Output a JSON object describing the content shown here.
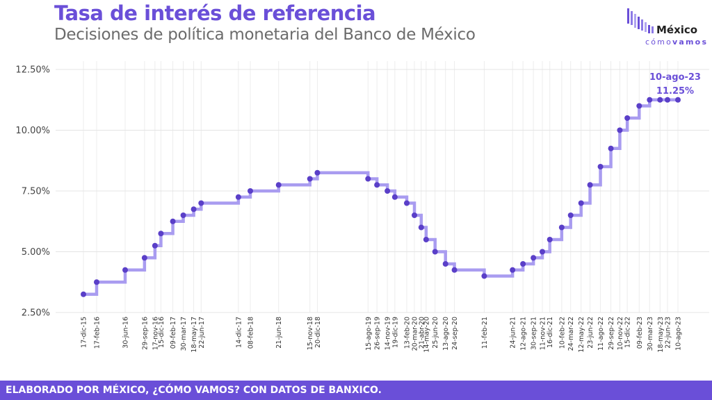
{
  "header": {
    "title": "Tasa de interés de referencia",
    "subtitle": "Decisiones de política monetaria del Banco de México"
  },
  "logo": {
    "word": "México",
    "sub_light": "cómo",
    "sub_bold": "vamos",
    "accent": "#6a4fd8"
  },
  "footer": {
    "text": "ELABORADO POR MÉXICO, ¿CÓMO VAMOS? CON DATOS DE BANXICO.",
    "bg_color": "#6a4fd8"
  },
  "chart_data": {
    "type": "line",
    "step": true,
    "line_color": "#a99cf0",
    "point_color": "#5a3fc8",
    "ylim": [
      2.0,
      12.5
    ],
    "yticks": [
      "2.50%",
      "5.00%",
      "7.50%",
      "10.00%",
      "12.50%"
    ],
    "ytick_values": [
      2.5,
      5.0,
      7.5,
      10.0,
      12.5
    ],
    "grid": true,
    "annotation": {
      "date": "10-ago-23",
      "value": "11.25%"
    },
    "points": [
      {
        "label": "17-dic-15",
        "date": "2015-12-17",
        "value": 3.25
      },
      {
        "label": "17-feb-16",
        "date": "2016-02-17",
        "value": 3.75
      },
      {
        "label": "30-jun-16",
        "date": "2016-06-30",
        "value": 4.25
      },
      {
        "label": "29-sep-16",
        "date": "2016-09-29",
        "value": 4.75
      },
      {
        "label": "17-nov-16",
        "date": "2016-11-17",
        "value": 5.25
      },
      {
        "label": "15-dic-16",
        "date": "2016-12-15",
        "value": 5.75
      },
      {
        "label": "09-feb-17",
        "date": "2017-02-09",
        "value": 6.25
      },
      {
        "label": "30-mar-17",
        "date": "2017-03-30",
        "value": 6.5
      },
      {
        "label": "18-may-17",
        "date": "2017-05-18",
        "value": 6.75
      },
      {
        "label": "22-jun-17",
        "date": "2017-06-22",
        "value": 7.0
      },
      {
        "label": "14-dic-17",
        "date": "2017-12-14",
        "value": 7.25
      },
      {
        "label": "08-feb-18",
        "date": "2018-02-08",
        "value": 7.5
      },
      {
        "label": "21-jun-18",
        "date": "2018-06-21",
        "value": 7.75
      },
      {
        "label": "15-nov-18",
        "date": "2018-11-15",
        "value": 8.0
      },
      {
        "label": "20-dic-18",
        "date": "2018-12-20",
        "value": 8.25
      },
      {
        "label": "15-ago-19",
        "date": "2019-08-15",
        "value": 8.0
      },
      {
        "label": "26-sep-19",
        "date": "2019-09-26",
        "value": 7.75
      },
      {
        "label": "14-nov-19",
        "date": "2019-11-14",
        "value": 7.5
      },
      {
        "label": "19-dic-19",
        "date": "2019-12-19",
        "value": 7.25
      },
      {
        "label": "13-feb-20",
        "date": "2020-02-13",
        "value": 7.0
      },
      {
        "label": "20-mar-20",
        "date": "2020-03-20",
        "value": 6.5
      },
      {
        "label": "21-abr-20",
        "date": "2020-04-21",
        "value": 6.0
      },
      {
        "label": "14-may-20",
        "date": "2020-05-14",
        "value": 5.5
      },
      {
        "label": "25-jun-20",
        "date": "2020-06-25",
        "value": 5.0
      },
      {
        "label": "13-ago-20",
        "date": "2020-08-13",
        "value": 4.5
      },
      {
        "label": "24-sep-20",
        "date": "2020-09-24",
        "value": 4.25
      },
      {
        "label": "11-feb-21",
        "date": "2021-02-11",
        "value": 4.0
      },
      {
        "label": "24-jun-21",
        "date": "2021-06-24",
        "value": 4.25
      },
      {
        "label": "12-ago-21",
        "date": "2021-08-12",
        "value": 4.5
      },
      {
        "label": "30-sep-21",
        "date": "2021-09-30",
        "value": 4.75
      },
      {
        "label": "11-nov-21",
        "date": "2021-11-11",
        "value": 5.0
      },
      {
        "label": "16-dic-21",
        "date": "2021-12-16",
        "value": 5.5
      },
      {
        "label": "10-feb-22",
        "date": "2022-02-10",
        "value": 6.0
      },
      {
        "label": "24-mar-22",
        "date": "2022-03-24",
        "value": 6.5
      },
      {
        "label": "12-may-22",
        "date": "2022-05-12",
        "value": 7.0
      },
      {
        "label": "23-jun-22",
        "date": "2022-06-23",
        "value": 7.75
      },
      {
        "label": "11-ago-22",
        "date": "2022-08-11",
        "value": 8.5
      },
      {
        "label": "29-sep-22",
        "date": "2022-09-29",
        "value": 9.25
      },
      {
        "label": "10-nov-22",
        "date": "2022-11-10",
        "value": 10.0
      },
      {
        "label": "15-dic-22",
        "date": "2022-12-15",
        "value": 10.5
      },
      {
        "label": "09-feb-23",
        "date": "2023-02-09",
        "value": 11.0
      },
      {
        "label": "30-mar-23",
        "date": "2023-03-30",
        "value": 11.25
      },
      {
        "label": "18-may-23",
        "date": "2023-05-18",
        "value": 11.25
      },
      {
        "label": "22-jun-23",
        "date": "2023-06-22",
        "value": 11.25
      },
      {
        "label": "10-ago-23",
        "date": "2023-08-10",
        "value": 11.25
      }
    ]
  }
}
